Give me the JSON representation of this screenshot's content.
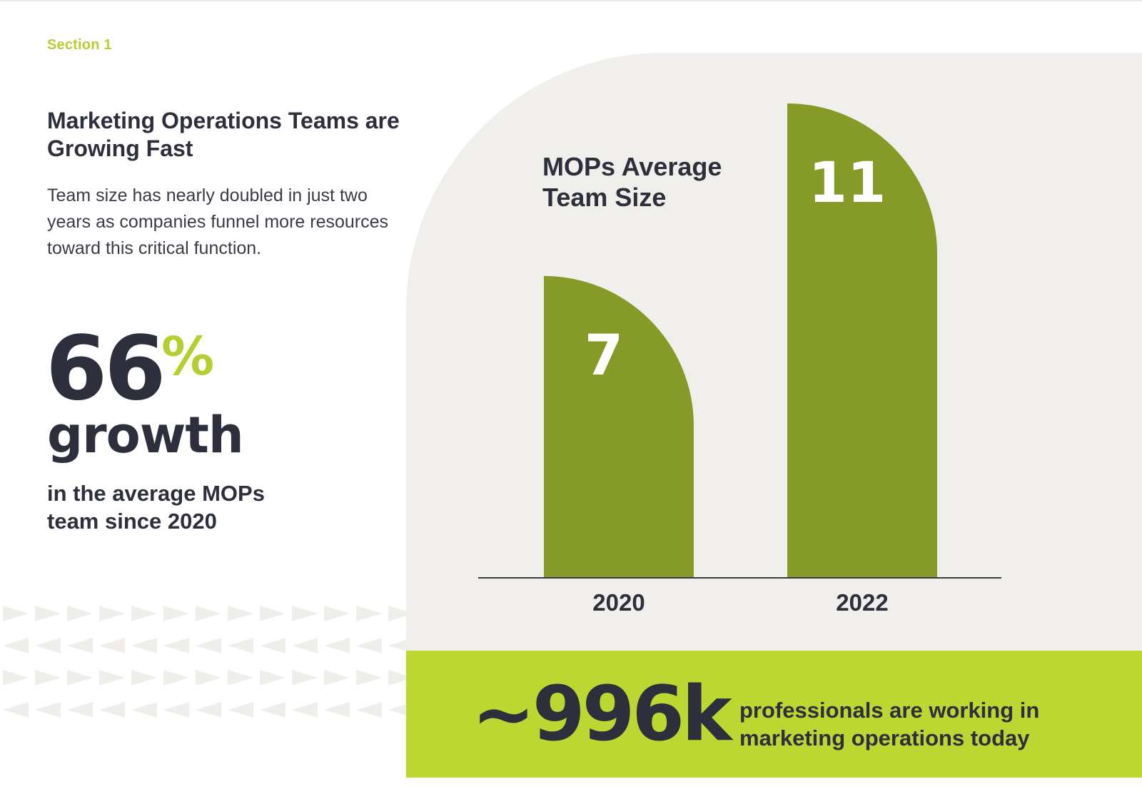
{
  "section_label": "Section 1",
  "headline": "Marketing Operations Teams are Growing Fast",
  "body": "Team size has nearly doubled in just two years as companies funnel more resources toward this critical function.",
  "stat": {
    "number": "66",
    "percent": "%",
    "word": "growth",
    "caption": "in the average MOPs team since 2020"
  },
  "banner": {
    "number": "~996k",
    "text": "professionals are working in marketing operations today"
  },
  "colors": {
    "accent": "#b3cf30",
    "bar": "#869a28",
    "panel": "#f0efec",
    "banner": "#bdd732",
    "text": "#2e2f3c"
  },
  "chart_data": {
    "type": "bar",
    "title": "MOPs Average Team Size",
    "categories": [
      "2020",
      "2022"
    ],
    "values": [
      7,
      11
    ],
    "value_labels": [
      "7",
      "11"
    ],
    "ylim": [
      0,
      11
    ],
    "grid": false,
    "legend": "none"
  }
}
